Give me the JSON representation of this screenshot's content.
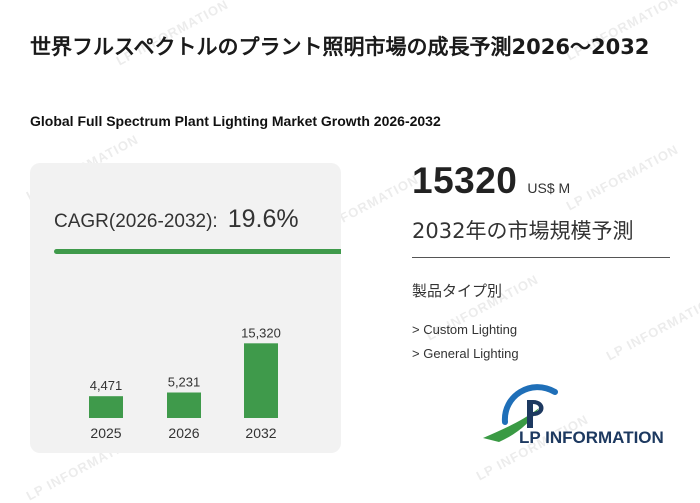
{
  "page": {
    "title": "世界フルスペクトルのプラント照明市場の成長予測2026～2032",
    "subtitle": "Global Full Spectrum Plant Lighting Market Growth 2026-2032"
  },
  "cagr": {
    "label": "CAGR(2026-2032):",
    "value": "19.6%"
  },
  "chart_data": {
    "type": "bar",
    "categories": [
      "2025",
      "2026",
      "2032"
    ],
    "values": [
      4471,
      5231,
      15320
    ],
    "value_labels": [
      "4,471",
      "5,231",
      "15,320"
    ],
    "title": "",
    "xlabel": "",
    "ylabel": "",
    "ylim": [
      0,
      16000
    ],
    "grid": false,
    "bar_color": "#3f9a4b"
  },
  "market": {
    "value": "15320",
    "unit": "US$ M",
    "label": "2032年の市場規模予測"
  },
  "segments": {
    "heading": "製品タイプ別",
    "items": [
      "> Custom Lighting",
      "> General Lighting"
    ]
  },
  "logo": {
    "text": "LP INFORMATION",
    "colors": {
      "blue": "#1f6fb8",
      "green": "#3a9a44",
      "navy": "#1d3960"
    }
  },
  "watermark": {
    "text": "LP INFORMATION"
  }
}
